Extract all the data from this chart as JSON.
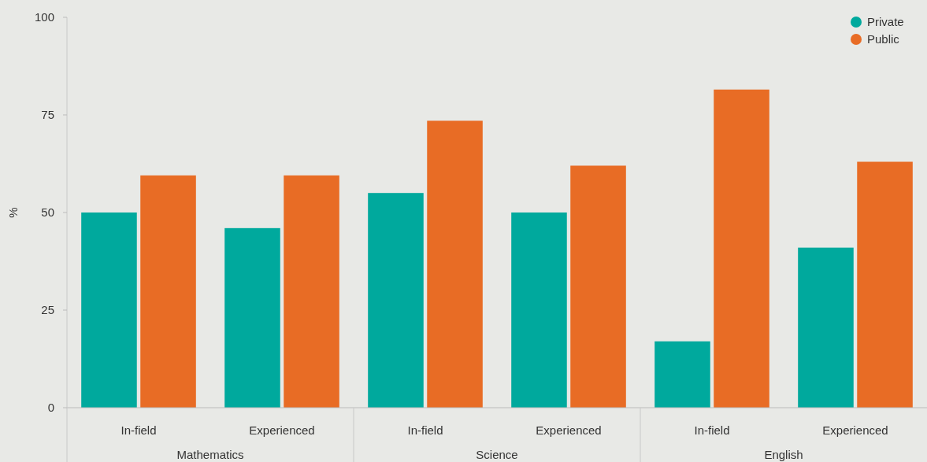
{
  "chart_data": {
    "type": "bar",
    "ylabel": "%",
    "categories": [
      "In-field",
      "Experienced",
      "In-field",
      "Experienced",
      "In-field",
      "Experienced"
    ],
    "series": [
      {
        "name": "Private",
        "color": "#00a99d",
        "values": [
          50,
          46,
          55,
          50,
          17,
          41
        ]
      },
      {
        "name": "Public",
        "color": "#e86c25",
        "values": [
          59.5,
          59.5,
          73.5,
          62,
          81.5,
          63
        ]
      }
    ],
    "ylim": [
      0,
      100
    ],
    "yticks": [
      0,
      25,
      50,
      75,
      100
    ],
    "grid": false,
    "legend": "top right",
    "annotations": [
      "Mathematics",
      "Science",
      "English"
    ]
  }
}
